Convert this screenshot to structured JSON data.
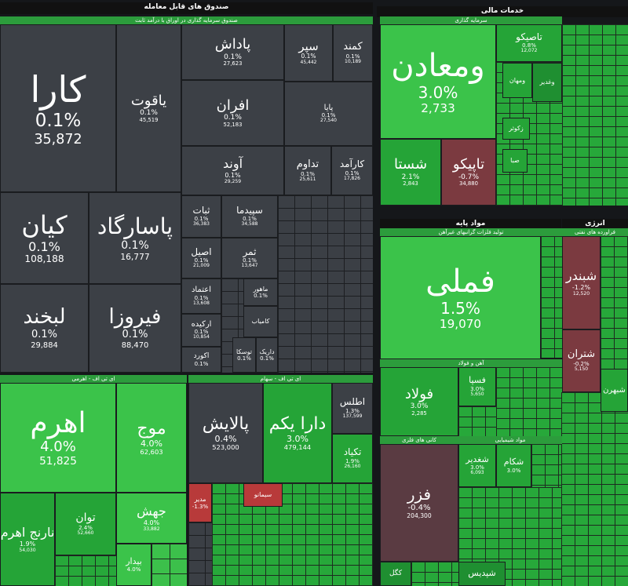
{
  "titles": [
    "صندوق های قابل معامله",
    "خدمات مالی",
    "مواد پایه",
    "انرژی"
  ],
  "sections": [
    {
      "title": "صندوق سرمایه گذاری در اوراق با درآمد ثابت",
      "tiles": [
        {
          "name": "کارا",
          "change": "0.1%",
          "value": "35,872"
        },
        {
          "name": "یاقوت",
          "change": "0.1%",
          "value": "45,519"
        },
        {
          "name": "کیان",
          "change": "0.1%",
          "value": "108,188"
        },
        {
          "name": "پاسارگاد",
          "change": "0.1%",
          "value": "16,777"
        },
        {
          "name": "لبخند",
          "change": "0.1%",
          "value": "29,884"
        },
        {
          "name": "فیروزا",
          "change": "0.1%",
          "value": "88,470"
        },
        {
          "name": "پاداش",
          "change": "0.1%",
          "value": "27,623"
        },
        {
          "name": "افران",
          "change": "0.1%",
          "value": "52,183"
        },
        {
          "name": "آوند",
          "change": "0.1%",
          "value": "29,259"
        },
        {
          "name": "سپر",
          "change": "0.1%",
          "value": "45,442"
        },
        {
          "name": "کمند",
          "change": "0.1%",
          "value": "10,189"
        },
        {
          "name": "پایا",
          "change": "0.1%",
          "value": "27,540"
        },
        {
          "name": "تداوم",
          "change": "0.1%",
          "value": "25,611"
        },
        {
          "name": "کارآمد",
          "change": "0.1%",
          "value": "17,826"
        },
        {
          "name": "ثبات",
          "change": "0.1%",
          "value": "36,383"
        },
        {
          "name": "سپیدما",
          "change": "0.1%",
          "value": "34,588"
        },
        {
          "name": "اصیل",
          "change": "0.1%",
          "value": "21,009"
        },
        {
          "name": "ثمر",
          "change": "0.1%",
          "value": "13,647"
        },
        {
          "name": "اعتماد",
          "change": "0.1%",
          "value": "13,608"
        },
        {
          "name": "ارکیده",
          "change": "0.1%",
          "value": "10,854"
        },
        {
          "name": "اکورد",
          "change": "0.1%"
        },
        {
          "name": "ماهور",
          "change": "0.1%"
        },
        {
          "name": "توسکا",
          "change": "0.1%"
        },
        {
          "name": "داریک",
          "change": "0.1%"
        },
        {
          "name": "کامیاب"
        }
      ]
    },
    {
      "title": "سرمایه گذاری",
      "tiles": [
        {
          "name": "ومعادن",
          "change": "3.0%",
          "value": "2,733"
        },
        {
          "name": "شستا",
          "change": "2.1%",
          "value": "2,843"
        },
        {
          "name": "تاپیکو",
          "change": "-0.7%",
          "value": "34,880"
        },
        {
          "name": "تاصیکو",
          "change": "0.8%",
          "value": "12,072"
        },
        {
          "name": "ومهان"
        },
        {
          "name": "وغدیر"
        },
        {
          "name": "زکوثر"
        },
        {
          "name": "صبا"
        }
      ]
    },
    {
      "title": "تولید فلزات گرانبهای غیرآهن",
      "tiles": [
        {
          "name": "فملی",
          "change": "1.5%",
          "value": "19,070"
        }
      ]
    },
    {
      "title": "آهن و فولاد",
      "tiles": [
        {
          "name": "فولاد",
          "change": "3.0%",
          "value": "2,285"
        },
        {
          "name": "فسپا",
          "change": "3.0%",
          "value": "5,650"
        }
      ]
    },
    {
      "title": "کانی های فلزی",
      "tiles": [
        {
          "name": "فزر",
          "change": "-0.4%",
          "value": "204,300"
        },
        {
          "name": "کگل"
        }
      ]
    },
    {
      "title": "مواد شیمیایی",
      "tiles": [
        {
          "name": "شغدیر",
          "change": "3.0%",
          "value": "6,093"
        },
        {
          "name": "شکام",
          "change": "3.0%"
        },
        {
          "name": "شپدیس"
        }
      ]
    },
    {
      "title": "فراورده های نفتی",
      "tiles": [
        {
          "name": "شبندر",
          "change": "-1.2%",
          "value": "12,520"
        },
        {
          "name": "شتران",
          "change": "-0.2%",
          "value": "5,150"
        },
        {
          "name": "شبهرن"
        }
      ]
    },
    {
      "title": "ای تی اف - اهرمی",
      "tiles": [
        {
          "name": "اهرم",
          "change": "4.0%",
          "value": "51,825"
        },
        {
          "name": "موج",
          "change": "4.0%",
          "value": "62,603"
        },
        {
          "name": "نارنج اهرم",
          "change": "1.9%",
          "value": "54,030"
        },
        {
          "name": "توان",
          "change": "2.4%",
          "value": "52,660"
        },
        {
          "name": "جهش",
          "change": "4.0%",
          "value": "33,882"
        },
        {
          "name": "بیدار",
          "change": "4.0%"
        }
      ]
    },
    {
      "title": "ای تی اف - سهام",
      "tiles": [
        {
          "name": "پالایش",
          "change": "0.4%",
          "value": "523,000"
        },
        {
          "name": "دارا یکم",
          "change": "3.0%",
          "value": "479,144"
        },
        {
          "name": "اطلس",
          "change": "1.3%",
          "value": "137,599"
        },
        {
          "name": "تکیاد",
          "change": "1.9%",
          "value": "26,160"
        },
        {
          "name": "مدیر",
          "change": "-1.3%"
        },
        {
          "name": "سیمانو"
        }
      ]
    }
  ]
}
